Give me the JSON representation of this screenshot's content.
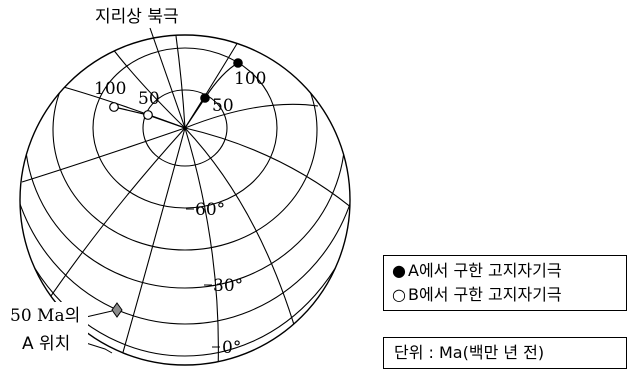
{
  "diagram": {
    "pole_label": "지리상 북극",
    "site_label_line1": "50 Ma의",
    "site_label_line2": "A 위치",
    "latitude_labels": [
      "60°",
      "30°",
      "0°"
    ],
    "path_a_ages": [
      "50",
      "100"
    ],
    "path_b_ages": [
      "50",
      "100"
    ],
    "colors": {
      "path_a_marker": "#000000",
      "path_b_marker": "#ffffff",
      "site_marker": "#8c8c8c"
    }
  },
  "legend": {
    "marker_a": "●",
    "text_a": "A에서 구한 고지자기극",
    "marker_b": "○",
    "text_b": "B에서 구한 고지자기극"
  },
  "unit_note": "단위 : Ma(백만 년 전)"
}
